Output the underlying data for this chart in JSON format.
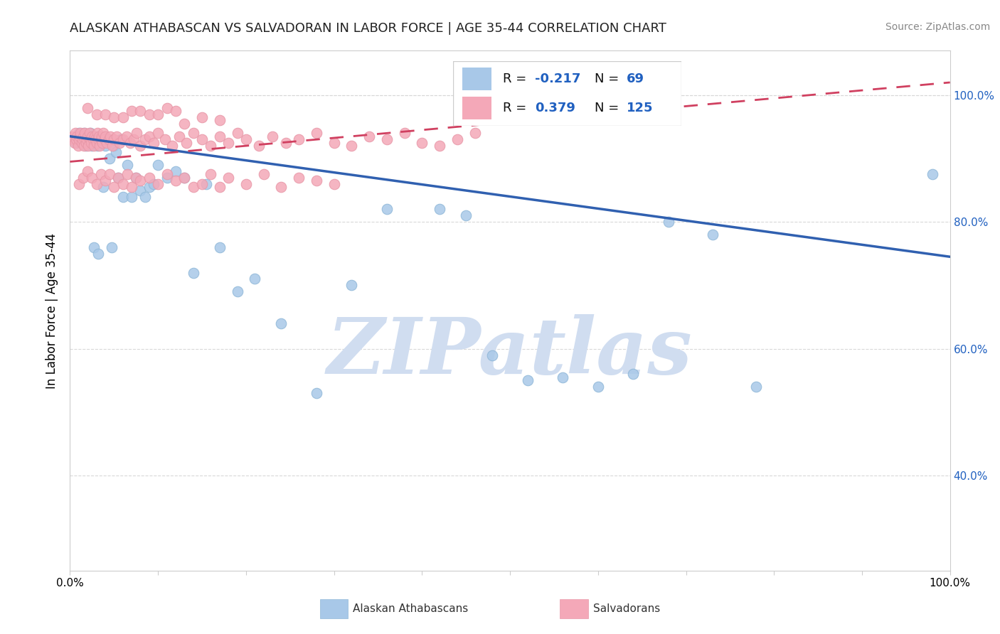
{
  "title": "ALASKAN ATHABASCAN VS SALVADORAN IN LABOR FORCE | AGE 35-44 CORRELATION CHART",
  "source": "Source: ZipAtlas.com",
  "ylabel": "In Labor Force | Age 35-44",
  "xlim": [
    0.0,
    1.0
  ],
  "ylim": [
    0.25,
    1.07
  ],
  "yticks": [
    0.4,
    0.6,
    0.8,
    1.0
  ],
  "ytick_labels": [
    "40.0%",
    "60.0%",
    "80.0%",
    "100.0%"
  ],
  "blue_color": "#a8c8e8",
  "pink_color": "#f4a8b8",
  "trend_blue_color": "#3060b0",
  "trend_pink_color": "#d04060",
  "watermark_color": "#d0ddf0",
  "legend_text_color": "#2060c0",
  "blue_trend_x0": 0.0,
  "blue_trend_y0": 0.935,
  "blue_trend_x1": 1.0,
  "blue_trend_y1": 0.745,
  "pink_trend_x0": 0.0,
  "pink_trend_y0": 0.895,
  "pink_trend_x1": 1.0,
  "pink_trend_y1": 1.02,
  "blue_x": [
    0.005,
    0.007,
    0.008,
    0.009,
    0.01,
    0.011,
    0.012,
    0.013,
    0.014,
    0.015,
    0.016,
    0.017,
    0.018,
    0.019,
    0.02,
    0.021,
    0.022,
    0.023,
    0.024,
    0.025,
    0.026,
    0.027,
    0.028,
    0.03,
    0.031,
    0.032,
    0.034,
    0.035,
    0.038,
    0.04,
    0.042,
    0.045,
    0.047,
    0.05,
    0.052,
    0.055,
    0.058,
    0.06,
    0.065,
    0.07,
    0.075,
    0.08,
    0.085,
    0.09,
    0.095,
    0.1,
    0.11,
    0.12,
    0.13,
    0.14,
    0.155,
    0.17,
    0.19,
    0.21,
    0.24,
    0.28,
    0.32,
    0.36,
    0.42,
    0.45,
    0.48,
    0.52,
    0.56,
    0.6,
    0.64,
    0.68,
    0.73,
    0.78,
    0.98
  ],
  "blue_y": [
    0.93,
    0.925,
    0.935,
    0.93,
    0.94,
    0.935,
    0.93,
    0.925,
    0.935,
    0.93,
    0.94,
    0.935,
    0.92,
    0.93,
    0.935,
    0.93,
    0.925,
    0.94,
    0.935,
    0.92,
    0.93,
    0.76,
    0.925,
    0.935,
    0.92,
    0.75,
    0.93,
    0.935,
    0.855,
    0.92,
    0.93,
    0.9,
    0.76,
    0.92,
    0.91,
    0.87,
    0.93,
    0.84,
    0.89,
    0.84,
    0.87,
    0.85,
    0.84,
    0.855,
    0.86,
    0.89,
    0.87,
    0.88,
    0.87,
    0.72,
    0.86,
    0.76,
    0.69,
    0.71,
    0.64,
    0.53,
    0.7,
    0.82,
    0.82,
    0.81,
    0.59,
    0.55,
    0.555,
    0.54,
    0.56,
    0.8,
    0.78,
    0.54,
    0.875
  ],
  "pink_x": [
    0.003,
    0.004,
    0.005,
    0.006,
    0.007,
    0.008,
    0.009,
    0.01,
    0.011,
    0.012,
    0.013,
    0.014,
    0.015,
    0.016,
    0.017,
    0.018,
    0.019,
    0.02,
    0.021,
    0.022,
    0.023,
    0.024,
    0.025,
    0.026,
    0.027,
    0.028,
    0.029,
    0.03,
    0.031,
    0.032,
    0.033,
    0.034,
    0.035,
    0.036,
    0.037,
    0.038,
    0.039,
    0.04,
    0.042,
    0.044,
    0.046,
    0.048,
    0.05,
    0.053,
    0.056,
    0.06,
    0.064,
    0.068,
    0.072,
    0.076,
    0.08,
    0.085,
    0.09,
    0.095,
    0.1,
    0.108,
    0.116,
    0.124,
    0.132,
    0.14,
    0.15,
    0.16,
    0.17,
    0.18,
    0.19,
    0.2,
    0.215,
    0.23,
    0.245,
    0.26,
    0.28,
    0.3,
    0.32,
    0.34,
    0.36,
    0.38,
    0.4,
    0.42,
    0.44,
    0.46,
    0.01,
    0.015,
    0.02,
    0.025,
    0.03,
    0.035,
    0.04,
    0.045,
    0.05,
    0.055,
    0.06,
    0.065,
    0.07,
    0.075,
    0.08,
    0.09,
    0.1,
    0.11,
    0.12,
    0.13,
    0.14,
    0.15,
    0.16,
    0.17,
    0.18,
    0.2,
    0.22,
    0.24,
    0.26,
    0.28,
    0.3,
    0.02,
    0.03,
    0.04,
    0.05,
    0.06,
    0.07,
    0.08,
    0.09,
    0.1,
    0.11,
    0.12,
    0.13,
    0.15,
    0.17
  ],
  "pink_y": [
    0.935,
    0.93,
    0.925,
    0.94,
    0.93,
    0.935,
    0.92,
    0.93,
    0.935,
    0.94,
    0.925,
    0.93,
    0.935,
    0.92,
    0.94,
    0.925,
    0.93,
    0.935,
    0.92,
    0.94,
    0.93,
    0.925,
    0.935,
    0.93,
    0.92,
    0.935,
    0.93,
    0.925,
    0.94,
    0.93,
    0.935,
    0.92,
    0.93,
    0.935,
    0.925,
    0.94,
    0.93,
    0.935,
    0.925,
    0.93,
    0.935,
    0.92,
    0.93,
    0.935,
    0.925,
    0.93,
    0.935,
    0.925,
    0.93,
    0.94,
    0.92,
    0.93,
    0.935,
    0.925,
    0.94,
    0.93,
    0.92,
    0.935,
    0.925,
    0.94,
    0.93,
    0.92,
    0.935,
    0.925,
    0.94,
    0.93,
    0.92,
    0.935,
    0.925,
    0.93,
    0.94,
    0.925,
    0.92,
    0.935,
    0.93,
    0.94,
    0.925,
    0.92,
    0.93,
    0.94,
    0.86,
    0.87,
    0.88,
    0.87,
    0.86,
    0.875,
    0.865,
    0.875,
    0.855,
    0.87,
    0.86,
    0.875,
    0.855,
    0.87,
    0.865,
    0.87,
    0.86,
    0.875,
    0.865,
    0.87,
    0.855,
    0.86,
    0.875,
    0.855,
    0.87,
    0.86,
    0.875,
    0.855,
    0.87,
    0.865,
    0.86,
    0.98,
    0.97,
    0.97,
    0.965,
    0.965,
    0.975,
    0.975,
    0.97,
    0.97,
    0.98,
    0.975,
    0.955,
    0.965,
    0.96
  ]
}
